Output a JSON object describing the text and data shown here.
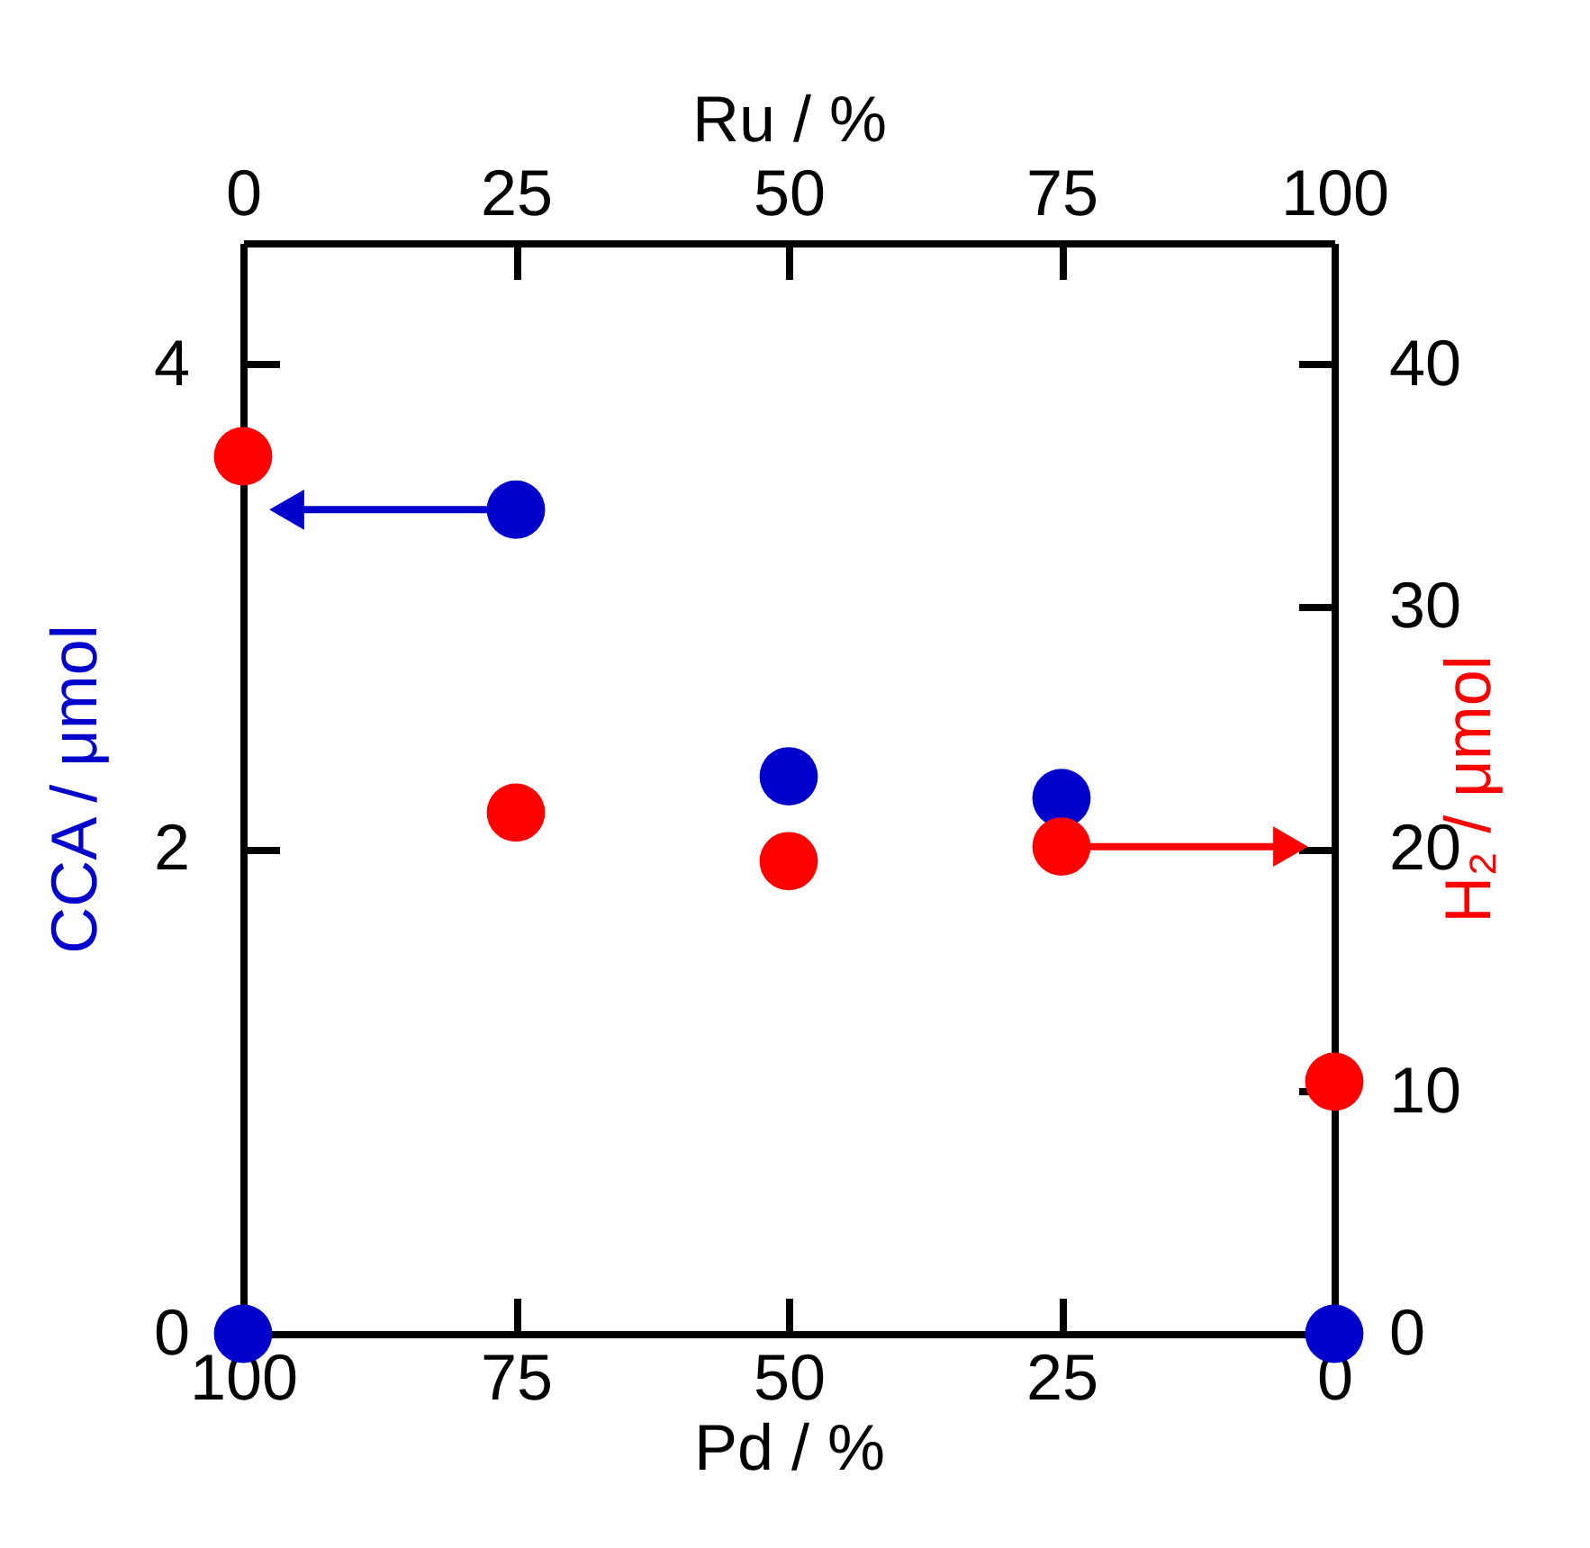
{
  "chart_data": {
    "type": "scatter",
    "xlabel": "Pd / %",
    "ylabel": "CCA / μmol",
    "y2label": "H₂ / μmol",
    "x2label": "Ru / %",
    "x": [
      100,
      75,
      50,
      25,
      0
    ],
    "xlim": [
      100,
      0
    ],
    "xticks": [
      100,
      75,
      50,
      25,
      0
    ],
    "x2lim": [
      0,
      100
    ],
    "x2ticks": [
      0,
      25,
      50,
      75,
      100
    ],
    "ylim": [
      0,
      4.5
    ],
    "yticks": [
      0,
      2,
      4
    ],
    "y2lim": [
      0,
      45
    ],
    "y2ticks": [
      0,
      10,
      20,
      30,
      40
    ],
    "series": [
      {
        "color": "#0000cd",
        "values": [
          0,
          3.4,
          2.3,
          2.21,
          0
        ]
      },
      {
        "color": "#ff0000",
        "axis": "y2",
        "values": [
          36.2,
          21.5,
          19.5,
          20.1,
          10.4
        ]
      }
    ],
    "marker": "circle",
    "grid": false
  }
}
